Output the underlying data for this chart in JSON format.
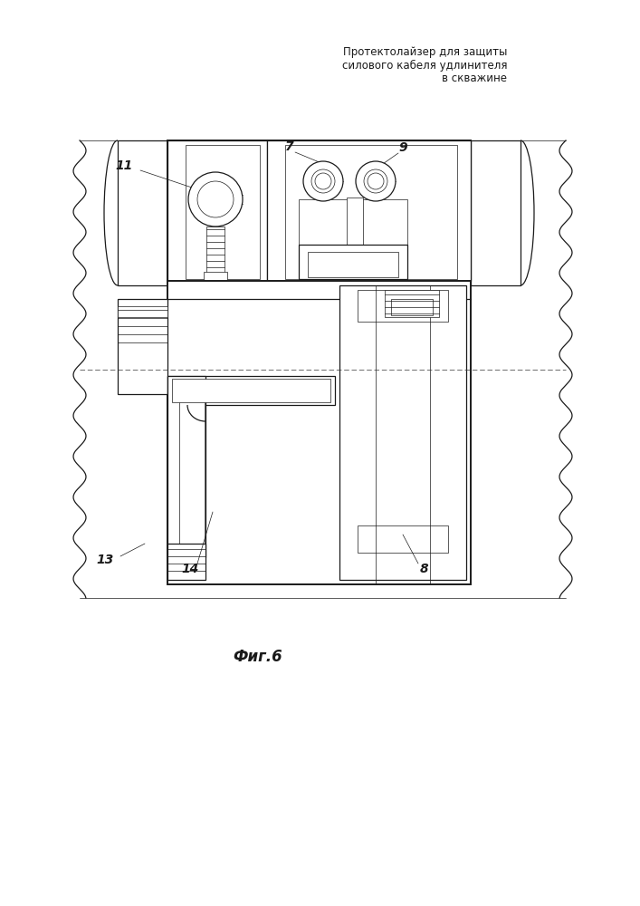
{
  "title_line1": "Протектолайзер для защиты",
  "title_line2": "силового кабеля удлинителя",
  "title_line3": "в скважине",
  "fig_label": "Фиг.6",
  "bg_color": "#ffffff",
  "line_color": "#1a1a1a",
  "lw_thin": 0.5,
  "lw_med": 0.9,
  "lw_thick": 1.4,
  "lw_xthick": 2.0
}
